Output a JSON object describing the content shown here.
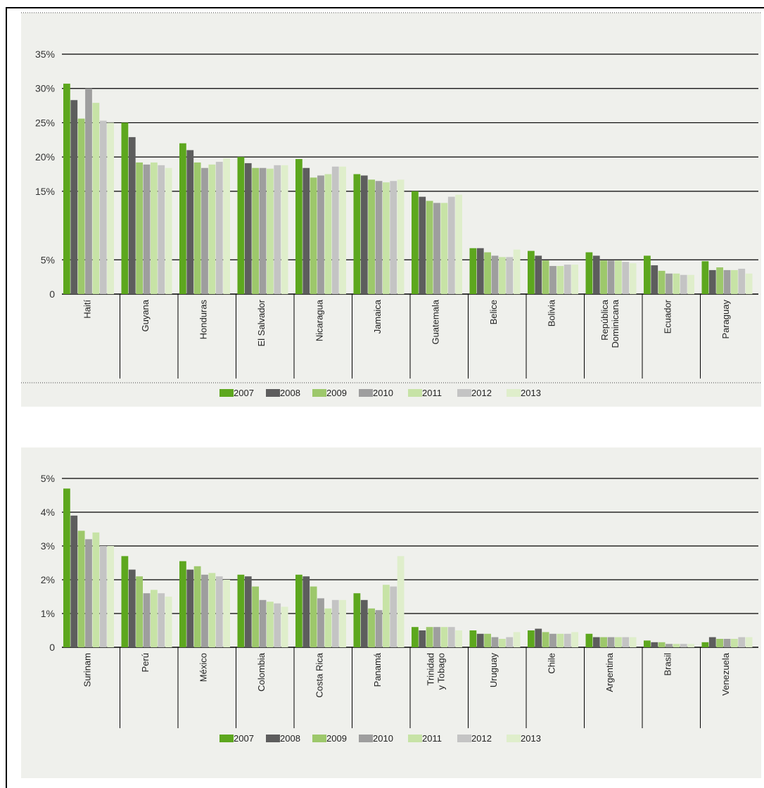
{
  "chart_data": [
    {
      "type": "bar",
      "title": "",
      "xlabel": "",
      "ylabel": "",
      "ylim": [
        0,
        35
      ],
      "yticks": [
        {
          "value": 0,
          "label": "0"
        },
        {
          "value": 5,
          "label": "5%"
        },
        {
          "value": 15,
          "label": "15%"
        },
        {
          "value": 20,
          "label": "20%"
        },
        {
          "value": 25,
          "label": "25%"
        },
        {
          "value": 30,
          "label": "30%"
        },
        {
          "value": 35,
          "label": "35%"
        }
      ],
      "grid": true,
      "legend_position": "bottom",
      "categories": [
        "Haití",
        "Guyana",
        "Honduras",
        "El Salvador",
        "Nicaragua",
        "Jamaica",
        "Guatemala",
        "Belice",
        "Bolivia",
        "República Dominicana",
        "Ecuador",
        "Paraguay"
      ],
      "series": [
        {
          "name": "2007",
          "values": [
            30.7,
            25.0,
            22.0,
            20.0,
            19.7,
            17.5,
            15.0,
            6.7,
            6.3,
            6.1,
            5.6,
            4.8
          ]
        },
        {
          "name": "2008",
          "values": [
            28.3,
            22.9,
            21.0,
            19.1,
            18.4,
            17.3,
            14.2,
            6.7,
            5.6,
            5.6,
            4.2,
            3.5
          ]
        },
        {
          "name": "2009",
          "values": [
            25.6,
            19.2,
            19.2,
            18.4,
            17.0,
            16.7,
            13.6,
            6.1,
            4.9,
            4.9,
            3.4,
            3.9
          ]
        },
        {
          "name": "2010",
          "values": [
            30.0,
            18.9,
            18.4,
            18.4,
            17.3,
            16.5,
            13.3,
            5.6,
            4.1,
            4.9,
            3.0,
            3.5
          ]
        },
        {
          "name": "2011",
          "values": [
            27.9,
            19.2,
            18.9,
            18.3,
            17.5,
            16.3,
            13.3,
            5.4,
            4.1,
            4.9,
            3.0,
            3.5
          ]
        },
        {
          "name": "2012",
          "values": [
            25.3,
            18.8,
            19.3,
            18.8,
            18.6,
            16.5,
            14.2,
            5.4,
            4.3,
            4.7,
            2.8,
            3.7
          ]
        },
        {
          "name": "2013",
          "values": [
            25.0,
            18.4,
            19.8,
            18.8,
            18.6,
            16.7,
            14.5,
            6.5,
            4.3,
            4.5,
            2.8,
            3.0
          ]
        }
      ]
    },
    {
      "type": "bar",
      "title": "",
      "xlabel": "",
      "ylabel": "",
      "ylim": [
        0,
        5
      ],
      "yticks": [
        {
          "value": 0,
          "label": "0"
        },
        {
          "value": 1,
          "label": "1%"
        },
        {
          "value": 2,
          "label": "2%"
        },
        {
          "value": 3,
          "label": "3%"
        },
        {
          "value": 4,
          "label": "4%"
        },
        {
          "value": 5,
          "label": "5%"
        }
      ],
      "grid": true,
      "legend_position": "bottom",
      "categories": [
        "Surinam",
        "Perú",
        "México",
        "Colombia",
        "Costa Rica",
        "Panamá",
        "Trinidad y Tobago",
        "Uruguay",
        "Chile",
        "Argentina",
        "Brasil",
        "Venezuela"
      ],
      "series": [
        {
          "name": "2007",
          "values": [
            4.7,
            2.7,
            2.55,
            2.15,
            2.15,
            1.6,
            0.6,
            0.5,
            0.5,
            0.4,
            0.2,
            0.15
          ]
        },
        {
          "name": "2008",
          "values": [
            3.9,
            2.3,
            2.3,
            2.1,
            2.1,
            1.4,
            0.5,
            0.4,
            0.55,
            0.3,
            0.15,
            0.3
          ]
        },
        {
          "name": "2009",
          "values": [
            3.45,
            2.1,
            2.4,
            1.8,
            1.8,
            1.15,
            0.6,
            0.4,
            0.45,
            0.3,
            0.15,
            0.25
          ]
        },
        {
          "name": "2010",
          "values": [
            3.2,
            1.6,
            2.15,
            1.4,
            1.45,
            1.1,
            0.6,
            0.3,
            0.4,
            0.3,
            0.1,
            0.25
          ]
        },
        {
          "name": "2011",
          "values": [
            3.4,
            1.7,
            2.2,
            1.35,
            1.15,
            1.85,
            0.6,
            0.25,
            0.4,
            0.3,
            0.1,
            0.25
          ]
        },
        {
          "name": "2012",
          "values": [
            3.0,
            1.6,
            2.1,
            1.3,
            1.4,
            1.8,
            0.6,
            0.3,
            0.4,
            0.3,
            0.1,
            0.3
          ]
        },
        {
          "name": "2013",
          "values": [
            3.0,
            1.5,
            2.0,
            1.2,
            1.4,
            2.7,
            0.5,
            0.45,
            0.45,
            0.3,
            0.1,
            0.3
          ]
        }
      ]
    }
  ],
  "colors": {
    "series": [
      "#5da71e",
      "#5d5d5d",
      "#9dc86b",
      "#9e9e9e",
      "#c7e3a6",
      "#c4c4c4",
      "#dfeecb"
    ],
    "panel_background": "#eff0ec",
    "gridline": "#000000"
  }
}
